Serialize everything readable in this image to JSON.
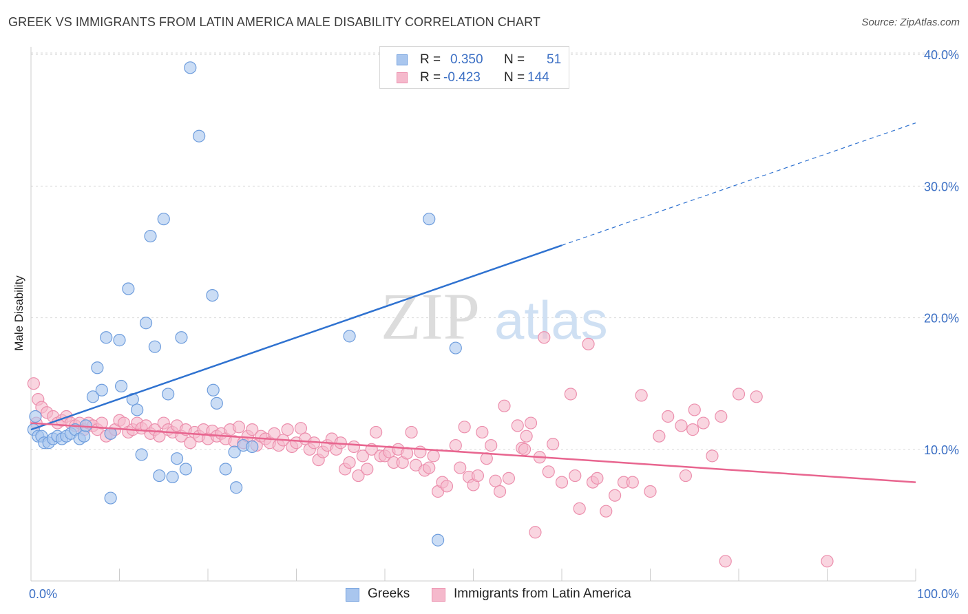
{
  "header": {
    "title": "GREEK VS IMMIGRANTS FROM LATIN AMERICA MALE DISABILITY CORRELATION CHART",
    "source": "Source: ZipAtlas.com"
  },
  "watermark": {
    "zip": "ZIP",
    "atlas": "atlas"
  },
  "legend": {
    "rows": [
      {
        "r_label": "R =",
        "r_value": "0.350",
        "n_label": "N =",
        "n_value": "51"
      },
      {
        "r_label": "R =",
        "r_value": "-0.423",
        "n_label": "N =",
        "n_value": "144"
      }
    ]
  },
  "bottom_legend": {
    "series1": "Greeks",
    "series2": "Immigrants from Latin America"
  },
  "colors": {
    "blue_fill": "#a9c6ee",
    "blue_stroke": "#6e9ddd",
    "blue_line": "#2f72d0",
    "pink_fill": "#f5b9cc",
    "pink_stroke": "#ec8fad",
    "pink_line": "#e8658f",
    "axis_text": "#3b6fc4",
    "grid": "#d9d9d9"
  },
  "chart_data": {
    "type": "scatter",
    "title": "GREEK VS IMMIGRANTS FROM LATIN AMERICA MALE DISABILITY CORRELATION CHART",
    "xlabel": "",
    "ylabel": "Male Disability",
    "xlim": [
      0,
      100
    ],
    "ylim": [
      0,
      42
    ],
    "x_tick_labels": [
      "0.0%",
      "100.0%"
    ],
    "y_ticks": [
      10,
      20,
      30,
      40
    ],
    "y_tick_labels": [
      "10.0%",
      "20.0%",
      "30.0%",
      "40.0%"
    ],
    "grid": true,
    "series": [
      {
        "name": "Greeks",
        "points": [
          [
            0.3,
            11.5
          ],
          [
            0.5,
            12.5
          ],
          [
            0.8,
            11.0
          ],
          [
            1.2,
            11.0
          ],
          [
            1.5,
            10.5
          ],
          [
            2.0,
            10.5
          ],
          [
            2.5,
            10.8
          ],
          [
            3.0,
            11.0
          ],
          [
            3.5,
            10.8
          ],
          [
            4.0,
            11.0
          ],
          [
            4.5,
            11.2
          ],
          [
            5.0,
            11.5
          ],
          [
            5.5,
            10.8
          ],
          [
            6.0,
            11.0
          ],
          [
            6.2,
            11.8
          ],
          [
            7.0,
            14.0
          ],
          [
            7.5,
            16.2
          ],
          [
            8.0,
            14.5
          ],
          [
            8.5,
            18.5
          ],
          [
            9.0,
            11.2
          ],
          [
            10.0,
            18.3
          ],
          [
            10.2,
            14.8
          ],
          [
            11.0,
            22.2
          ],
          [
            11.5,
            13.8
          ],
          [
            12.0,
            13.0
          ],
          [
            12.5,
            9.6
          ],
          [
            13.0,
            19.6
          ],
          [
            13.5,
            26.2
          ],
          [
            14.0,
            17.8
          ],
          [
            14.5,
            8.0
          ],
          [
            15.0,
            27.5
          ],
          [
            15.5,
            14.2
          ],
          [
            16.0,
            7.9
          ],
          [
            16.5,
            9.3
          ],
          [
            17.0,
            18.5
          ],
          [
            17.5,
            8.5
          ],
          [
            18.0,
            39.0
          ],
          [
            19.0,
            33.8
          ],
          [
            20.5,
            21.7
          ],
          [
            20.6,
            14.5
          ],
          [
            21.0,
            13.5
          ],
          [
            22.0,
            8.5
          ],
          [
            23.0,
            9.8
          ],
          [
            23.2,
            7.1
          ],
          [
            24.0,
            10.3
          ],
          [
            25.0,
            10.2
          ],
          [
            36.0,
            18.6
          ],
          [
            45.0,
            27.5
          ],
          [
            46.0,
            3.1
          ],
          [
            48.0,
            17.7
          ],
          [
            9.0,
            6.3
          ]
        ],
        "trend": {
          "x0": 0,
          "y0": 11.5,
          "x1": 60,
          "y1": 25.5,
          "dashed_to_x": 100,
          "dashed_to_y": 34.8
        }
      },
      {
        "name": "Immigrants from Latin America",
        "points": [
          [
            0.3,
            15.0
          ],
          [
            0.8,
            13.8
          ],
          [
            1.2,
            13.2
          ],
          [
            1.8,
            12.8
          ],
          [
            2.5,
            12.5
          ],
          [
            3.0,
            12.0
          ],
          [
            3.5,
            12.2
          ],
          [
            4.0,
            12.5
          ],
          [
            4.5,
            12.0
          ],
          [
            5.0,
            11.8
          ],
          [
            5.5,
            12.0
          ],
          [
            6.0,
            11.5
          ],
          [
            6.5,
            12.0
          ],
          [
            7.0,
            11.8
          ],
          [
            7.5,
            11.5
          ],
          [
            8.0,
            12.0
          ],
          [
            8.5,
            11.0
          ],
          [
            9.0,
            11.2
          ],
          [
            9.5,
            11.5
          ],
          [
            10.0,
            12.2
          ],
          [
            10.5,
            12.0
          ],
          [
            11.0,
            11.3
          ],
          [
            11.5,
            11.5
          ],
          [
            12.0,
            12.0
          ],
          [
            12.5,
            11.6
          ],
          [
            13.0,
            11.8
          ],
          [
            13.5,
            11.2
          ],
          [
            14.0,
            11.5
          ],
          [
            14.5,
            11.0
          ],
          [
            15.0,
            12.0
          ],
          [
            15.5,
            11.5
          ],
          [
            16.0,
            11.3
          ],
          [
            16.5,
            11.8
          ],
          [
            17.0,
            11.0
          ],
          [
            17.5,
            11.5
          ],
          [
            18.0,
            10.5
          ],
          [
            18.5,
            11.3
          ],
          [
            19.0,
            11.0
          ],
          [
            19.5,
            11.5
          ],
          [
            20.0,
            10.8
          ],
          [
            20.5,
            11.4
          ],
          [
            21.0,
            11.0
          ],
          [
            21.5,
            11.2
          ],
          [
            22.0,
            10.8
          ],
          [
            22.5,
            11.5
          ],
          [
            23.0,
            10.6
          ],
          [
            23.5,
            11.7
          ],
          [
            24.0,
            10.5
          ],
          [
            24.5,
            11.0
          ],
          [
            25.0,
            11.5
          ],
          [
            25.5,
            10.3
          ],
          [
            26.0,
            11.0
          ],
          [
            26.5,
            10.8
          ],
          [
            27.0,
            10.5
          ],
          [
            27.5,
            11.2
          ],
          [
            28.0,
            10.3
          ],
          [
            28.5,
            10.7
          ],
          [
            29.0,
            11.5
          ],
          [
            29.5,
            10.2
          ],
          [
            30.0,
            10.5
          ],
          [
            30.5,
            11.6
          ],
          [
            31.0,
            10.8
          ],
          [
            31.5,
            10.0
          ],
          [
            32.0,
            10.5
          ],
          [
            32.5,
            9.2
          ],
          [
            33.0,
            9.8
          ],
          [
            33.5,
            10.3
          ],
          [
            34.0,
            10.8
          ],
          [
            34.5,
            10.0
          ],
          [
            35.0,
            10.5
          ],
          [
            35.5,
            8.5
          ],
          [
            36.0,
            9.0
          ],
          [
            36.5,
            10.2
          ],
          [
            37.0,
            8.0
          ],
          [
            37.5,
            9.5
          ],
          [
            38.0,
            8.5
          ],
          [
            38.5,
            10.0
          ],
          [
            39.0,
            11.3
          ],
          [
            39.5,
            9.5
          ],
          [
            40.0,
            9.5
          ],
          [
            40.5,
            9.8
          ],
          [
            41.0,
            9.0
          ],
          [
            41.5,
            10.0
          ],
          [
            42.0,
            9.0
          ],
          [
            42.5,
            9.7
          ],
          [
            43.0,
            11.3
          ],
          [
            43.5,
            8.8
          ],
          [
            44.0,
            9.8
          ],
          [
            44.5,
            8.4
          ],
          [
            45.0,
            8.6
          ],
          [
            45.5,
            9.5
          ],
          [
            46.0,
            6.8
          ],
          [
            46.5,
            7.5
          ],
          [
            47.0,
            7.2
          ],
          [
            48.0,
            10.3
          ],
          [
            48.5,
            8.6
          ],
          [
            49.0,
            11.7
          ],
          [
            49.5,
            7.9
          ],
          [
            50.0,
            7.3
          ],
          [
            50.5,
            8.0
          ],
          [
            51.0,
            11.3
          ],
          [
            51.5,
            9.3
          ],
          [
            52.0,
            10.3
          ],
          [
            52.5,
            7.6
          ],
          [
            53.0,
            6.8
          ],
          [
            54.0,
            7.8
          ],
          [
            55.0,
            11.8
          ],
          [
            55.5,
            10.1
          ],
          [
            56.0,
            11.0
          ],
          [
            57.0,
            3.7
          ],
          [
            57.5,
            9.4
          ],
          [
            58.0,
            18.5
          ],
          [
            58.5,
            8.3
          ],
          [
            59.0,
            10.4
          ],
          [
            60.0,
            7.5
          ],
          [
            61.0,
            14.2
          ],
          [
            61.5,
            8.0
          ],
          [
            62.0,
            5.5
          ],
          [
            63.0,
            18.0
          ],
          [
            63.5,
            7.5
          ],
          [
            65.0,
            5.3
          ],
          [
            66.0,
            6.5
          ],
          [
            67.0,
            7.5
          ],
          [
            68.0,
            7.5
          ],
          [
            69.0,
            14.1
          ],
          [
            70.0,
            6.8
          ],
          [
            71.0,
            11.0
          ],
          [
            72.0,
            12.5
          ],
          [
            74.0,
            8.0
          ],
          [
            75.0,
            13.0
          ],
          [
            76.0,
            12.0
          ],
          [
            77.0,
            9.5
          ],
          [
            78.0,
            12.5
          ],
          [
            80.0,
            14.2
          ],
          [
            82.0,
            14.0
          ],
          [
            78.5,
            1.5
          ],
          [
            90.0,
            1.5
          ],
          [
            0.6,
            12.0
          ],
          [
            53.5,
            13.3
          ],
          [
            56.5,
            12.0
          ],
          [
            74.8,
            11.5
          ],
          [
            73.5,
            11.8
          ],
          [
            64.0,
            7.8
          ],
          [
            55.8,
            10.0
          ]
        ],
        "trend": {
          "x0": 0,
          "y0": 12.0,
          "x1": 100,
          "y1": 7.5
        }
      }
    ]
  }
}
